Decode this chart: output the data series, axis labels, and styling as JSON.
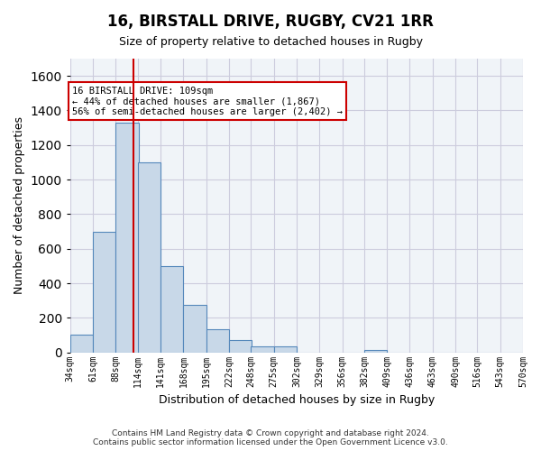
{
  "title_line1": "16, BIRSTALL DRIVE, RUGBY, CV21 1RR",
  "title_line2": "Size of property relative to detached houses in Rugby",
  "xlabel": "Distribution of detached houses by size in Rugby",
  "ylabel": "Number of detached properties",
  "footnote": "Contains HM Land Registry data © Crown copyright and database right 2024.\nContains public sector information licensed under the Open Government Licence v3.0.",
  "bar_color": "#c8d8e8",
  "bar_edge_color": "#5588bb",
  "grid_color": "#ccccdd",
  "annotation_box_color": "#cc0000",
  "vline_color": "#cc0000",
  "bin_labels": [
    "34sqm",
    "61sqm",
    "88sqm",
    "114sqm",
    "141sqm",
    "168sqm",
    "195sqm",
    "222sqm",
    "248sqm",
    "275sqm",
    "302sqm",
    "329sqm",
    "356sqm",
    "382sqm",
    "409sqm",
    "436sqm",
    "463sqm",
    "490sqm",
    "516sqm",
    "543sqm",
    "570sqm"
  ],
  "bin_edges": [
    34,
    61,
    88,
    114,
    141,
    168,
    195,
    222,
    248,
    275,
    302,
    329,
    356,
    382,
    409,
    436,
    463,
    490,
    516,
    543,
    570
  ],
  "bar_heights": [
    100,
    700,
    1330,
    1100,
    500,
    275,
    135,
    72,
    35,
    35,
    0,
    0,
    0,
    15,
    0,
    0,
    0,
    0,
    0,
    0
  ],
  "property_size": 109,
  "property_label": "16 BIRSTALL DRIVE: 109sqm",
  "pct_smaller": 44,
  "count_smaller": 1867,
  "pct_larger": 56,
  "count_larger": 2402,
  "ylim": [
    0,
    1700
  ],
  "yticks": [
    0,
    200,
    400,
    600,
    800,
    1000,
    1200,
    1400,
    1600
  ],
  "background_color": "#f0f4f8"
}
